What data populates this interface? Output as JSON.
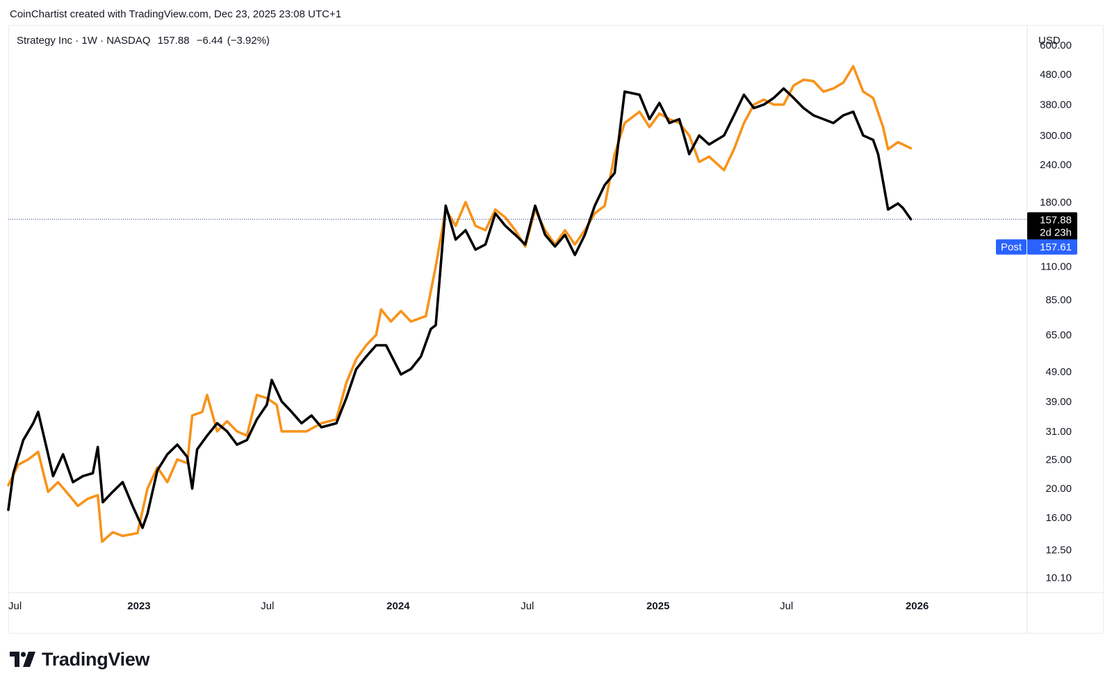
{
  "header": {
    "credit": "CoinChartist created with TradingView.com, Dec 23, 2025 23:08 UTC+1"
  },
  "legend": {
    "symbol": "Strategy Inc · 1W · NASDAQ",
    "last": "157.88",
    "change": "−6.44",
    "change_pct": "(−3.92%)"
  },
  "price_axis": {
    "currency": "USD",
    "ticks": [
      "600.00",
      "480.00",
      "380.00",
      "300.00",
      "240.00",
      "180.00",
      "110.00",
      "85.00",
      "65.00",
      "49.00",
      "39.00",
      "31.00",
      "25.00",
      "20.00",
      "16.00",
      "12.50",
      "10.10"
    ]
  },
  "badges": {
    "last_price": "157.88",
    "countdown": "2d 23h",
    "post_label": "Post",
    "post_price": "157.61"
  },
  "colors": {
    "main_series": "#000000",
    "compare_series": "#f7931a",
    "post_badge": "#2962ff",
    "price_line": "#1e3a8a",
    "grid_border": "#e0e3eb"
  },
  "branding": {
    "logo_text": "TradingView"
  },
  "chart_data": {
    "type": "line",
    "y_scale": "log",
    "ylim": [
      9,
      700
    ],
    "xlim": [
      "2022-07-01",
      "2026-06-05"
    ],
    "x_ticks": [
      {
        "date": "2022-07-01",
        "label": "Jul",
        "bold": false
      },
      {
        "date": "2023-01-01",
        "label": "2023",
        "bold": true
      },
      {
        "date": "2023-07-01",
        "label": "Jul",
        "bold": false
      },
      {
        "date": "2024-01-01",
        "label": "2024",
        "bold": true
      },
      {
        "date": "2024-07-01",
        "label": "Jul",
        "bold": false
      },
      {
        "date": "2025-01-01",
        "label": "2025",
        "bold": true
      },
      {
        "date": "2025-07-01",
        "label": "Jul",
        "bold": false
      },
      {
        "date": "2026-01-01",
        "label": "2026",
        "bold": true
      }
    ],
    "series": [
      {
        "color": "#f7931a",
        "points": [
          [
            "2022-07-01",
            20.5
          ],
          [
            "2022-07-15",
            24
          ],
          [
            "2022-07-29",
            25
          ],
          [
            "2022-08-12",
            26.5
          ],
          [
            "2022-08-26",
            19.5
          ],
          [
            "2022-09-09",
            21
          ],
          [
            "2022-09-23",
            19.2
          ],
          [
            "2022-10-07",
            17.5
          ],
          [
            "2022-10-21",
            18.5
          ],
          [
            "2022-11-04",
            19
          ],
          [
            "2022-11-10",
            13.3
          ],
          [
            "2022-11-25",
            14.3
          ],
          [
            "2022-12-09",
            13.9
          ],
          [
            "2022-12-30",
            14.2
          ],
          [
            "2023-01-13",
            20
          ],
          [
            "2023-01-27",
            23.5
          ],
          [
            "2023-02-10",
            21
          ],
          [
            "2023-02-24",
            25
          ],
          [
            "2023-03-10",
            24.3
          ],
          [
            "2023-03-17",
            35
          ],
          [
            "2023-03-31",
            36
          ],
          [
            "2023-04-07",
            41
          ],
          [
            "2023-04-21",
            31
          ],
          [
            "2023-05-05",
            33.5
          ],
          [
            "2023-05-19",
            31
          ],
          [
            "2023-06-02",
            30
          ],
          [
            "2023-06-16",
            41
          ],
          [
            "2023-06-30",
            40
          ],
          [
            "2023-07-14",
            38
          ],
          [
            "2023-07-21",
            31
          ],
          [
            "2023-08-04",
            31
          ],
          [
            "2023-08-25",
            31
          ],
          [
            "2023-09-15",
            33
          ],
          [
            "2023-10-06",
            34
          ],
          [
            "2023-10-20",
            45
          ],
          [
            "2023-11-03",
            54
          ],
          [
            "2023-11-17",
            60
          ],
          [
            "2023-12-01",
            65
          ],
          [
            "2023-12-08",
            79
          ],
          [
            "2023-12-22",
            72
          ],
          [
            "2024-01-05",
            78
          ],
          [
            "2024-01-19",
            72
          ],
          [
            "2024-02-09",
            75
          ],
          [
            "2024-02-23",
            110
          ],
          [
            "2024-03-08",
            170
          ],
          [
            "2024-03-22",
            150
          ],
          [
            "2024-04-05",
            180
          ],
          [
            "2024-04-19",
            150
          ],
          [
            "2024-05-03",
            145
          ],
          [
            "2024-05-17",
            170
          ],
          [
            "2024-05-31",
            160
          ],
          [
            "2024-06-14",
            145
          ],
          [
            "2024-06-28",
            128
          ],
          [
            "2024-07-12",
            170
          ],
          [
            "2024-07-26",
            145
          ],
          [
            "2024-08-09",
            130
          ],
          [
            "2024-08-23",
            145
          ],
          [
            "2024-09-06",
            130
          ],
          [
            "2024-09-20",
            145
          ],
          [
            "2024-10-04",
            165
          ],
          [
            "2024-10-18",
            175
          ],
          [
            "2024-11-01",
            260
          ],
          [
            "2024-11-15",
            330
          ],
          [
            "2024-12-06",
            360
          ],
          [
            "2024-12-20",
            320
          ],
          [
            "2025-01-03",
            355
          ],
          [
            "2025-01-17",
            340
          ],
          [
            "2025-01-31",
            330
          ],
          [
            "2025-02-14",
            300
          ],
          [
            "2025-02-28",
            245
          ],
          [
            "2025-03-14",
            255
          ],
          [
            "2025-04-04",
            230
          ],
          [
            "2025-04-18",
            270
          ],
          [
            "2025-05-02",
            330
          ],
          [
            "2025-05-16",
            380
          ],
          [
            "2025-05-30",
            395
          ],
          [
            "2025-06-13",
            380
          ],
          [
            "2025-06-27",
            380
          ],
          [
            "2025-07-11",
            440
          ],
          [
            "2025-07-25",
            460
          ],
          [
            "2025-08-08",
            455
          ],
          [
            "2025-08-22",
            420
          ],
          [
            "2025-09-05",
            430
          ],
          [
            "2025-09-19",
            450
          ],
          [
            "2025-10-03",
            510
          ],
          [
            "2025-10-17",
            420
          ],
          [
            "2025-10-31",
            400
          ],
          [
            "2025-11-14",
            320
          ],
          [
            "2025-11-21",
            270
          ],
          [
            "2025-12-05",
            285
          ],
          [
            "2025-12-23",
            272
          ]
        ]
      },
      {
        "color": "#000000",
        "points": [
          [
            "2022-07-01",
            17
          ],
          [
            "2022-07-08",
            22.5
          ],
          [
            "2022-07-22",
            29
          ],
          [
            "2022-08-05",
            33
          ],
          [
            "2022-08-12",
            36
          ],
          [
            "2022-08-26",
            26
          ],
          [
            "2022-09-02",
            22
          ],
          [
            "2022-09-16",
            26
          ],
          [
            "2022-09-30",
            21
          ],
          [
            "2022-10-14",
            22
          ],
          [
            "2022-10-28",
            22.5
          ],
          [
            "2022-11-04",
            27.5
          ],
          [
            "2022-11-11",
            18
          ],
          [
            "2022-11-25",
            19.5
          ],
          [
            "2022-12-09",
            21
          ],
          [
            "2022-12-23",
            17.5
          ],
          [
            "2023-01-06",
            14.8
          ],
          [
            "2023-01-13",
            16.5
          ],
          [
            "2023-01-27",
            23
          ],
          [
            "2023-02-10",
            26
          ],
          [
            "2023-02-24",
            28
          ],
          [
            "2023-03-10",
            25.5
          ],
          [
            "2023-03-17",
            20
          ],
          [
            "2023-03-24",
            27
          ],
          [
            "2023-04-07",
            30
          ],
          [
            "2023-04-21",
            33
          ],
          [
            "2023-05-05",
            31
          ],
          [
            "2023-05-19",
            28
          ],
          [
            "2023-06-02",
            29
          ],
          [
            "2023-06-16",
            34
          ],
          [
            "2023-06-30",
            38
          ],
          [
            "2023-07-07",
            46
          ],
          [
            "2023-07-21",
            39
          ],
          [
            "2023-08-04",
            36
          ],
          [
            "2023-08-18",
            33
          ],
          [
            "2023-09-01",
            35
          ],
          [
            "2023-09-15",
            32
          ],
          [
            "2023-10-06",
            33
          ],
          [
            "2023-10-20",
            40
          ],
          [
            "2023-11-03",
            50
          ],
          [
            "2023-11-17",
            55
          ],
          [
            "2023-12-01",
            60
          ],
          [
            "2023-12-15",
            60
          ],
          [
            "2024-01-05",
            48
          ],
          [
            "2024-01-19",
            50
          ],
          [
            "2024-02-02",
            55
          ],
          [
            "2024-02-16",
            68
          ],
          [
            "2024-02-23",
            70
          ],
          [
            "2024-03-08",
            175
          ],
          [
            "2024-03-22",
            135
          ],
          [
            "2024-04-05",
            145
          ],
          [
            "2024-04-19",
            125
          ],
          [
            "2024-05-03",
            130
          ],
          [
            "2024-05-17",
            165
          ],
          [
            "2024-05-31",
            150
          ],
          [
            "2024-06-14",
            140
          ],
          [
            "2024-06-28",
            130
          ],
          [
            "2024-07-12",
            175
          ],
          [
            "2024-07-26",
            140
          ],
          [
            "2024-08-09",
            128
          ],
          [
            "2024-08-23",
            140
          ],
          [
            "2024-09-06",
            120
          ],
          [
            "2024-09-20",
            140
          ],
          [
            "2024-10-04",
            175
          ],
          [
            "2024-10-18",
            205
          ],
          [
            "2024-11-01",
            225
          ],
          [
            "2024-11-15",
            420
          ],
          [
            "2024-12-06",
            410
          ],
          [
            "2024-12-20",
            340
          ],
          [
            "2025-01-03",
            385
          ],
          [
            "2025-01-17",
            330
          ],
          [
            "2025-01-31",
            340
          ],
          [
            "2025-02-14",
            260
          ],
          [
            "2025-02-28",
            300
          ],
          [
            "2025-03-14",
            280
          ],
          [
            "2025-04-04",
            300
          ],
          [
            "2025-04-18",
            350
          ],
          [
            "2025-05-02",
            410
          ],
          [
            "2025-05-16",
            370
          ],
          [
            "2025-05-30",
            380
          ],
          [
            "2025-06-13",
            400
          ],
          [
            "2025-06-27",
            430
          ],
          [
            "2025-07-11",
            400
          ],
          [
            "2025-07-25",
            370
          ],
          [
            "2025-08-08",
            350
          ],
          [
            "2025-08-22",
            340
          ],
          [
            "2025-09-05",
            330
          ],
          [
            "2025-09-19",
            350
          ],
          [
            "2025-10-03",
            360
          ],
          [
            "2025-10-17",
            300
          ],
          [
            "2025-10-31",
            290
          ],
          [
            "2025-11-07",
            260
          ],
          [
            "2025-11-21",
            170
          ],
          [
            "2025-12-05",
            178
          ],
          [
            "2025-12-12",
            172
          ],
          [
            "2025-12-23",
            157.88
          ]
        ]
      }
    ],
    "last_value": 157.88
  }
}
